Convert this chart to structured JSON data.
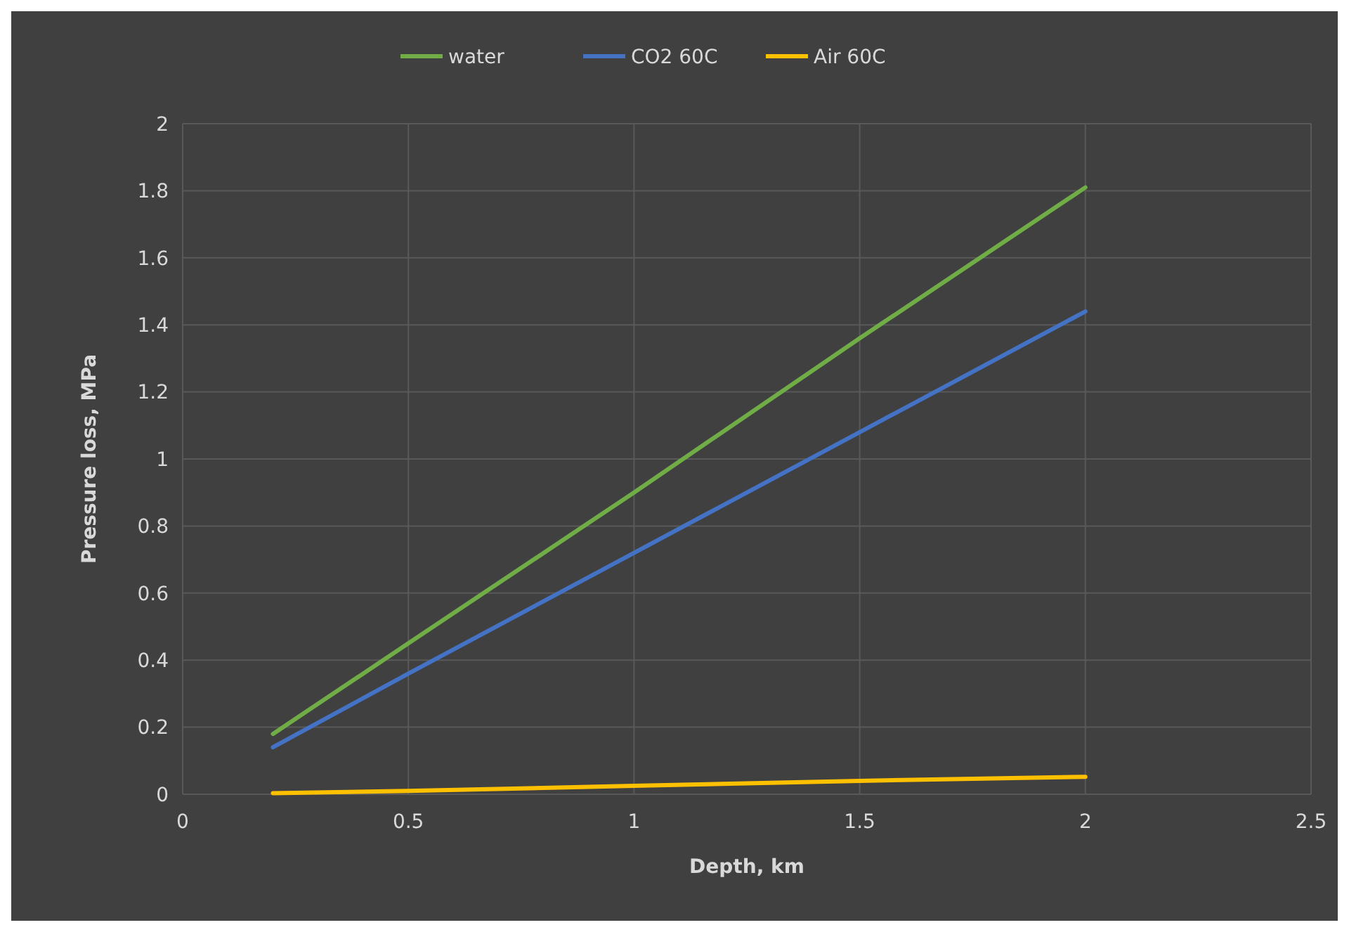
{
  "chart_data": {
    "type": "line",
    "xlabel": "Depth, km",
    "ylabel": "Pressure loss, MPa",
    "x": [
      0.2,
      0.5,
      1,
      1.5,
      2
    ],
    "series": [
      {
        "name": "water",
        "color": "#70ad47",
        "values": [
          0.18,
          0.45,
          0.9,
          1.36,
          1.81
        ]
      },
      {
        "name": "CO2 60C",
        "color": "#4472c4",
        "values": [
          0.14,
          0.36,
          0.72,
          1.08,
          1.44
        ]
      },
      {
        "name": "Air 60C",
        "color": "#ffc000",
        "values": [
          0.003,
          0.01,
          0.025,
          0.04,
          0.052
        ]
      }
    ],
    "xlim": [
      0,
      2.5
    ],
    "xticks": [
      0,
      0.5,
      1,
      1.5,
      2,
      2.5
    ],
    "ylim": [
      0,
      2
    ],
    "yticks": [
      0,
      0.2,
      0.4,
      0.6,
      0.8,
      1,
      1.2,
      1.4,
      1.6,
      1.8,
      2
    ],
    "grid": true,
    "legend": "top",
    "marker": "none",
    "line_style": "solid"
  }
}
